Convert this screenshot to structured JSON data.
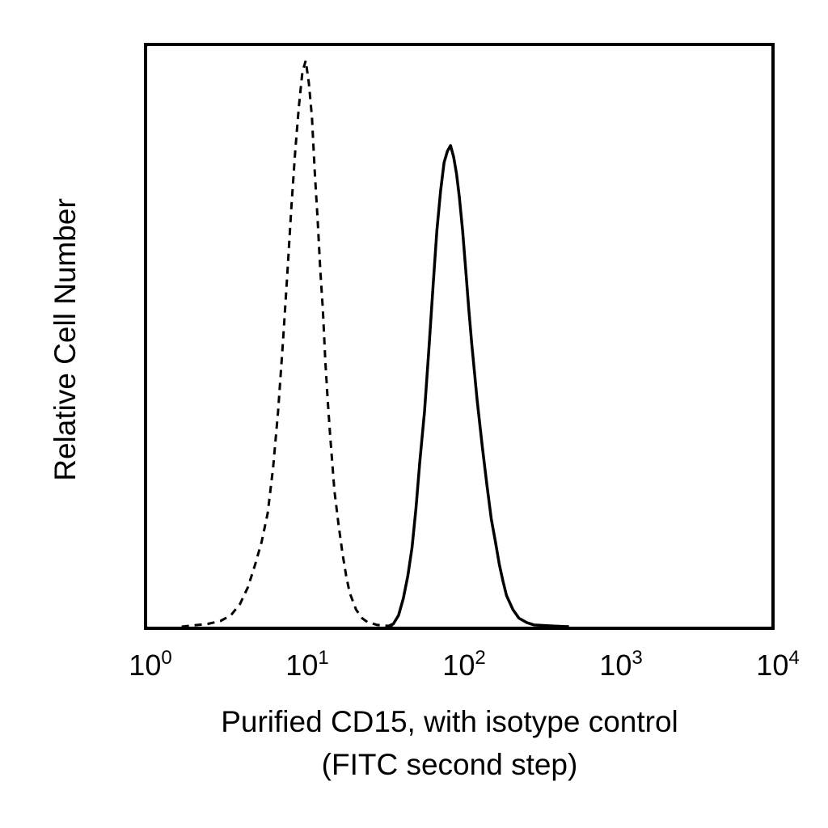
{
  "chart_data": {
    "type": "line",
    "xlabel_line1": "Purified CD15, with isotype control",
    "xlabel_line2": "(FITC second step)",
    "ylabel": "Relative Cell Number",
    "x_scale": "log",
    "xlim": [
      1,
      10000
    ],
    "ylim": [
      0,
      100
    ],
    "y_ticks_shown": false,
    "grid": false,
    "legend": "none",
    "x_ticks": [
      {
        "base": "10",
        "exp": "0",
        "value": 1
      },
      {
        "base": "10",
        "exp": "1",
        "value": 10
      },
      {
        "base": "10",
        "exp": "2",
        "value": 100
      },
      {
        "base": "10",
        "exp": "3",
        "value": 1000
      },
      {
        "base": "10",
        "exp": "4",
        "value": 10000
      }
    ],
    "series": [
      {
        "style": "dashed",
        "color": "#000000",
        "x": [
          1.7,
          2.5,
          3.0,
          3.5,
          4.0,
          4.5,
          5.0,
          5.5,
          6.0,
          6.5,
          7.0,
          7.5,
          8.0,
          8.5,
          9.0,
          9.5,
          10.0,
          10.5,
          11.0,
          11.5,
          12.0,
          12.5,
          13.0,
          13.5,
          14.0,
          14.5,
          15.0,
          15.5,
          16.0,
          17.0,
          18.0,
          19.0,
          20.0,
          22.0,
          24.0,
          26.0,
          30.0,
          40.0
        ],
        "y": [
          0.0,
          0.5,
          1.0,
          2.0,
          4.0,
          7.0,
          11.0,
          15.0,
          20.0,
          28.0,
          38.0,
          50.0,
          62.0,
          74.0,
          84.0,
          92.0,
          98.0,
          100.0,
          96.0,
          90.0,
          80.0,
          72.0,
          63.0,
          56.0,
          47.0,
          40.0,
          34.0,
          29.0,
          24.0,
          18.0,
          13.0,
          9.0,
          6.0,
          3.0,
          1.5,
          0.8,
          0.3,
          0.0
        ]
      },
      {
        "style": "solid",
        "color": "#000000",
        "x": [
          35,
          38,
          41,
          44,
          47,
          50,
          53,
          56,
          60,
          64,
          68,
          72,
          76,
          80,
          84,
          88,
          92,
          96,
          100,
          105,
          110,
          115,
          120,
          130,
          140,
          150,
          160,
          170,
          180,
          190,
          200,
          220,
          240,
          270,
          300,
          400,
          500
        ],
        "y": [
          0.0,
          0.5,
          2.0,
          5.0,
          9.0,
          14.0,
          21.0,
          29.0,
          38.0,
          49.0,
          60.0,
          70.0,
          77.0,
          82.0,
          84.0,
          85.0,
          83.0,
          80.0,
          76.0,
          70.0,
          63.0,
          56.0,
          50.0,
          40.0,
          32.0,
          25.0,
          19.0,
          15.0,
          11.0,
          8.0,
          5.5,
          3.0,
          1.5,
          0.7,
          0.3,
          0.1,
          0.0
        ]
      }
    ]
  }
}
